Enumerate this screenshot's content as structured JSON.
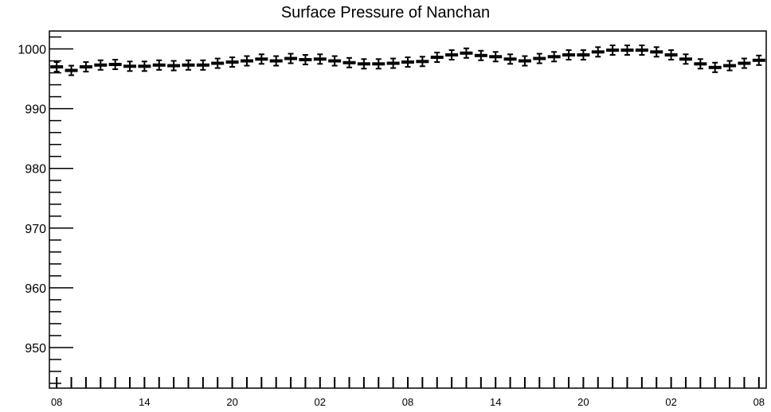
{
  "chart_data": {
    "type": "scatter",
    "title": "Surface Pressure of Nanchan",
    "xlabel": "",
    "ylabel": "",
    "x": [
      0,
      1,
      2,
      3,
      4,
      5,
      6,
      7,
      8,
      9,
      10,
      11,
      12,
      13,
      14,
      15,
      16,
      17,
      18,
      19,
      20,
      21,
      22,
      23,
      24,
      25,
      26,
      27,
      28,
      29,
      30,
      31,
      32,
      33,
      34,
      35,
      36,
      37,
      38,
      39,
      40,
      41,
      42,
      43,
      44,
      45,
      46,
      47,
      48
    ],
    "values": [
      997.0,
      996.4,
      997.0,
      997.3,
      997.4,
      997.1,
      997.1,
      997.3,
      997.2,
      997.3,
      997.3,
      997.6,
      997.8,
      998.0,
      998.3,
      998.0,
      998.4,
      998.2,
      998.3,
      998.0,
      997.7,
      997.5,
      997.5,
      997.6,
      997.8,
      997.9,
      998.6,
      999.0,
      999.3,
      998.9,
      998.7,
      998.3,
      998.0,
      998.4,
      998.7,
      999.0,
      999.0,
      999.5,
      999.8,
      999.8,
      999.8,
      999.5,
      999.0,
      998.3,
      997.5,
      996.9,
      997.2,
      997.6,
      998.1
    ],
    "error": 0.8,
    "xlim": [
      -0.5,
      48.5
    ],
    "ylim": [
      943.2,
      1003.0
    ],
    "y_ticks": [
      950,
      960,
      970,
      980,
      990,
      1000
    ],
    "x_tick_labels": [
      {
        "x": 0,
        "label": "08"
      },
      {
        "x": 6,
        "label": "14"
      },
      {
        "x": 12,
        "label": "20"
      },
      {
        "x": 18,
        "label": "02"
      },
      {
        "x": 24,
        "label": "08"
      },
      {
        "x": 30,
        "label": "14"
      },
      {
        "x": 36,
        "label": "20"
      },
      {
        "x": 42,
        "label": "02"
      },
      {
        "x": 48,
        "label": "08"
      }
    ],
    "grid": false,
    "legend": "none",
    "colors": {
      "marker": "#000000",
      "axes": "#000000",
      "background": "#ffffff"
    }
  }
}
